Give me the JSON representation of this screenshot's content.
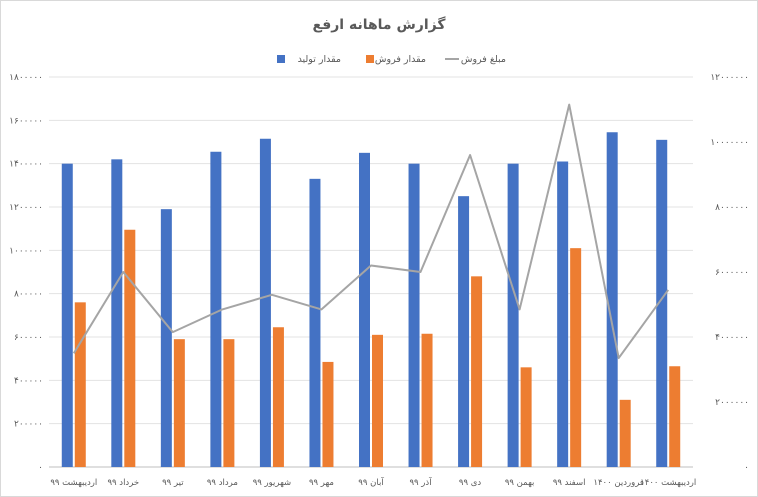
{
  "chart_data": {
    "type": "bar",
    "title": "گزارش ماهانه ارفع",
    "categories": [
      "اردیبهشت ۹۹",
      "خرداد ۹۹",
      "تیر ۹۹",
      "مرداد ۹۹",
      "شهریور ۹۹",
      "مهر ۹۹",
      "آبان ۹۹",
      "آذر ۹۹",
      "دی ۹۹",
      "بهمن ۹۹",
      "اسفند ۹۹",
      "فروردین ۱۴۰۰",
      "اردیبهشت ۱۴۰۰"
    ],
    "series": [
      {
        "name": "مقدار تولید",
        "type": "bar",
        "axis": "left",
        "color": "#4472C4",
        "values": [
          1400000,
          1420000,
          1190000,
          1455000,
          1515000,
          1330000,
          1450000,
          1400000,
          1250000,
          1400000,
          1410000,
          1545000,
          1510000
        ]
      },
      {
        "name": "مقدار فروش",
        "type": "bar",
        "axis": "left",
        "color": "#ED7D31",
        "values": [
          760000,
          1095000,
          590000,
          590000,
          645000,
          485000,
          610000,
          615000,
          880000,
          460000,
          1010000,
          310000,
          465000
        ]
      },
      {
        "name": "مبلغ فروش",
        "type": "line",
        "axis": "right",
        "color": "#A5A5A5",
        "values": [
          3500000,
          6000000,
          4150000,
          4850000,
          5300000,
          4850000,
          6200000,
          6000000,
          9600000,
          4850000,
          11150000,
          3350000,
          5450000
        ]
      }
    ],
    "left_axis": {
      "min": 0,
      "max": 1800000,
      "step": 200000,
      "tick_labels": [
        "۰",
        "۲۰۰۰۰۰",
        "۴۰۰۰۰۰",
        "۶۰۰۰۰۰",
        "۸۰۰۰۰۰",
        "۱۰۰۰۰۰۰",
        "۱۲۰۰۰۰۰",
        "۱۴۰۰۰۰۰",
        "۱۶۰۰۰۰۰",
        "۱۸۰۰۰۰۰"
      ]
    },
    "right_axis": {
      "min": 0,
      "max": 12000000,
      "step": 2000000,
      "tick_labels": [
        "۰",
        "۲۰۰۰۰۰۰",
        "۴۰۰۰۰۰۰",
        "۶۰۰۰۰۰۰",
        "۸۰۰۰۰۰۰",
        "۱۰۰۰۰۰۰۰",
        "۱۲۰۰۰۰۰۰"
      ]
    },
    "legend_position": "top-center",
    "grid": true
  }
}
